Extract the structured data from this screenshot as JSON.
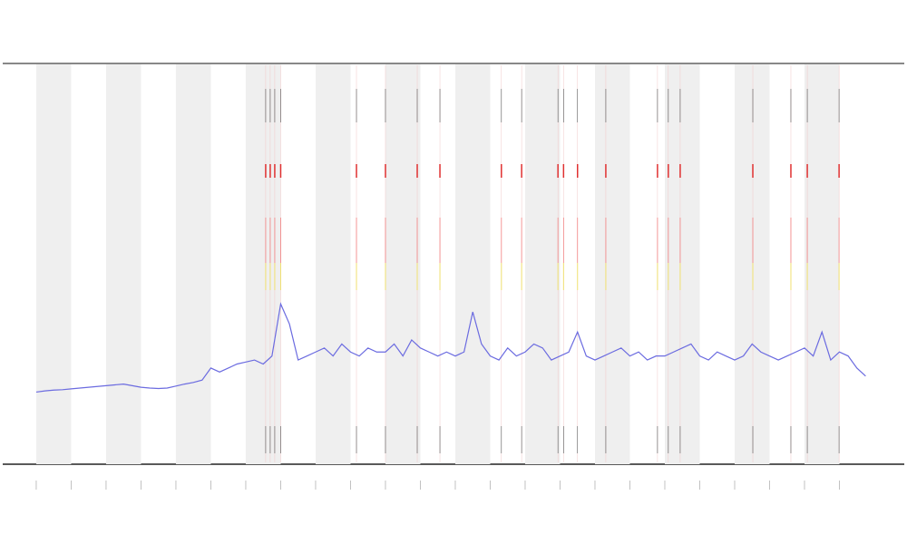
{
  "chart_data": {
    "type": "line",
    "x": [
      0,
      0.25,
      0.5,
      0.75,
      1,
      1.25,
      1.5,
      1.75,
      2,
      2.25,
      2.5,
      2.75,
      3,
      3.25,
      3.5,
      3.75,
      4,
      4.25,
      4.5,
      4.75,
      5,
      5.25,
      5.5,
      5.75,
      6,
      6.25,
      6.5,
      6.75,
      7,
      7.25,
      7.5,
      7.75,
      8,
      8.25,
      8.5,
      8.75,
      9,
      9.25,
      9.5,
      9.75,
      10,
      10.25,
      10.5,
      10.75,
      11,
      11.25,
      11.5,
      11.75,
      12,
      12.25,
      12.5,
      12.75,
      13,
      13.25,
      13.5,
      13.75,
      14,
      14.25,
      14.5,
      14.75,
      15,
      15.25,
      15.5,
      15.75,
      16,
      16.25,
      16.5,
      16.75,
      17,
      17.25,
      17.5,
      17.75,
      18,
      18.25,
      18.5,
      18.75,
      19,
      19.25,
      19.5,
      19.75,
      20,
      20.25,
      20.5,
      20.75,
      21,
      21.25,
      21.5,
      21.75,
      22,
      22.25,
      22.5,
      22.75,
      23,
      23.25,
      23.5,
      23.75
    ],
    "series": [
      {
        "color": "#6b6be0",
        "values": [
          18,
          18.3,
          18.5,
          18.6,
          18.8,
          19,
          19.2,
          19.4,
          19.6,
          19.8,
          20,
          19.6,
          19.2,
          19,
          18.9,
          19,
          19.5,
          20,
          20.4,
          21,
          24,
          23,
          24,
          25,
          25.5,
          26,
          25,
          27,
          40,
          35,
          26,
          27,
          28,
          29,
          27,
          30,
          28,
          27,
          29,
          28,
          28,
          30,
          27,
          31,
          29,
          28,
          27,
          28,
          27,
          28,
          38,
          30,
          27,
          26,
          29,
          27,
          28,
          30,
          29,
          26,
          27,
          28,
          33,
          27,
          26,
          27,
          28,
          29,
          27,
          28,
          26,
          27,
          27,
          28,
          29,
          30,
          27,
          26,
          28,
          27,
          26,
          27,
          30,
          28,
          27,
          26,
          27,
          28,
          29,
          27,
          33,
          26,
          28,
          27,
          24,
          22
        ]
      }
    ],
    "xlim": [
      -0.96,
      24
    ],
    "ylim": [
      0,
      100
    ],
    "xticks": [
      0,
      1,
      2,
      3,
      4,
      5,
      6,
      7,
      8,
      9,
      10,
      11,
      12,
      13,
      14,
      15,
      16,
      17,
      18,
      19,
      20,
      21,
      22,
      23
    ],
    "shaded_spans": [
      [
        0,
        1
      ],
      [
        2,
        3
      ],
      [
        4,
        5
      ],
      [
        6,
        7
      ],
      [
        8,
        9
      ],
      [
        10,
        11
      ],
      [
        12,
        13
      ],
      [
        14,
        15
      ],
      [
        16,
        17
      ],
      [
        18,
        19
      ],
      [
        20,
        21
      ],
      [
        22,
        23
      ]
    ],
    "shade_color": "#efefef",
    "events": [
      6.57,
      6.7,
      6.83,
      7.0,
      9.17,
      10.0,
      10.91,
      11.56,
      13.32,
      13.9,
      14.94,
      15.1,
      15.5,
      16.31,
      17.79,
      18.1,
      18.44,
      20.52,
      21.61,
      22.08,
      22.99
    ],
    "event_color": "#e03030"
  }
}
